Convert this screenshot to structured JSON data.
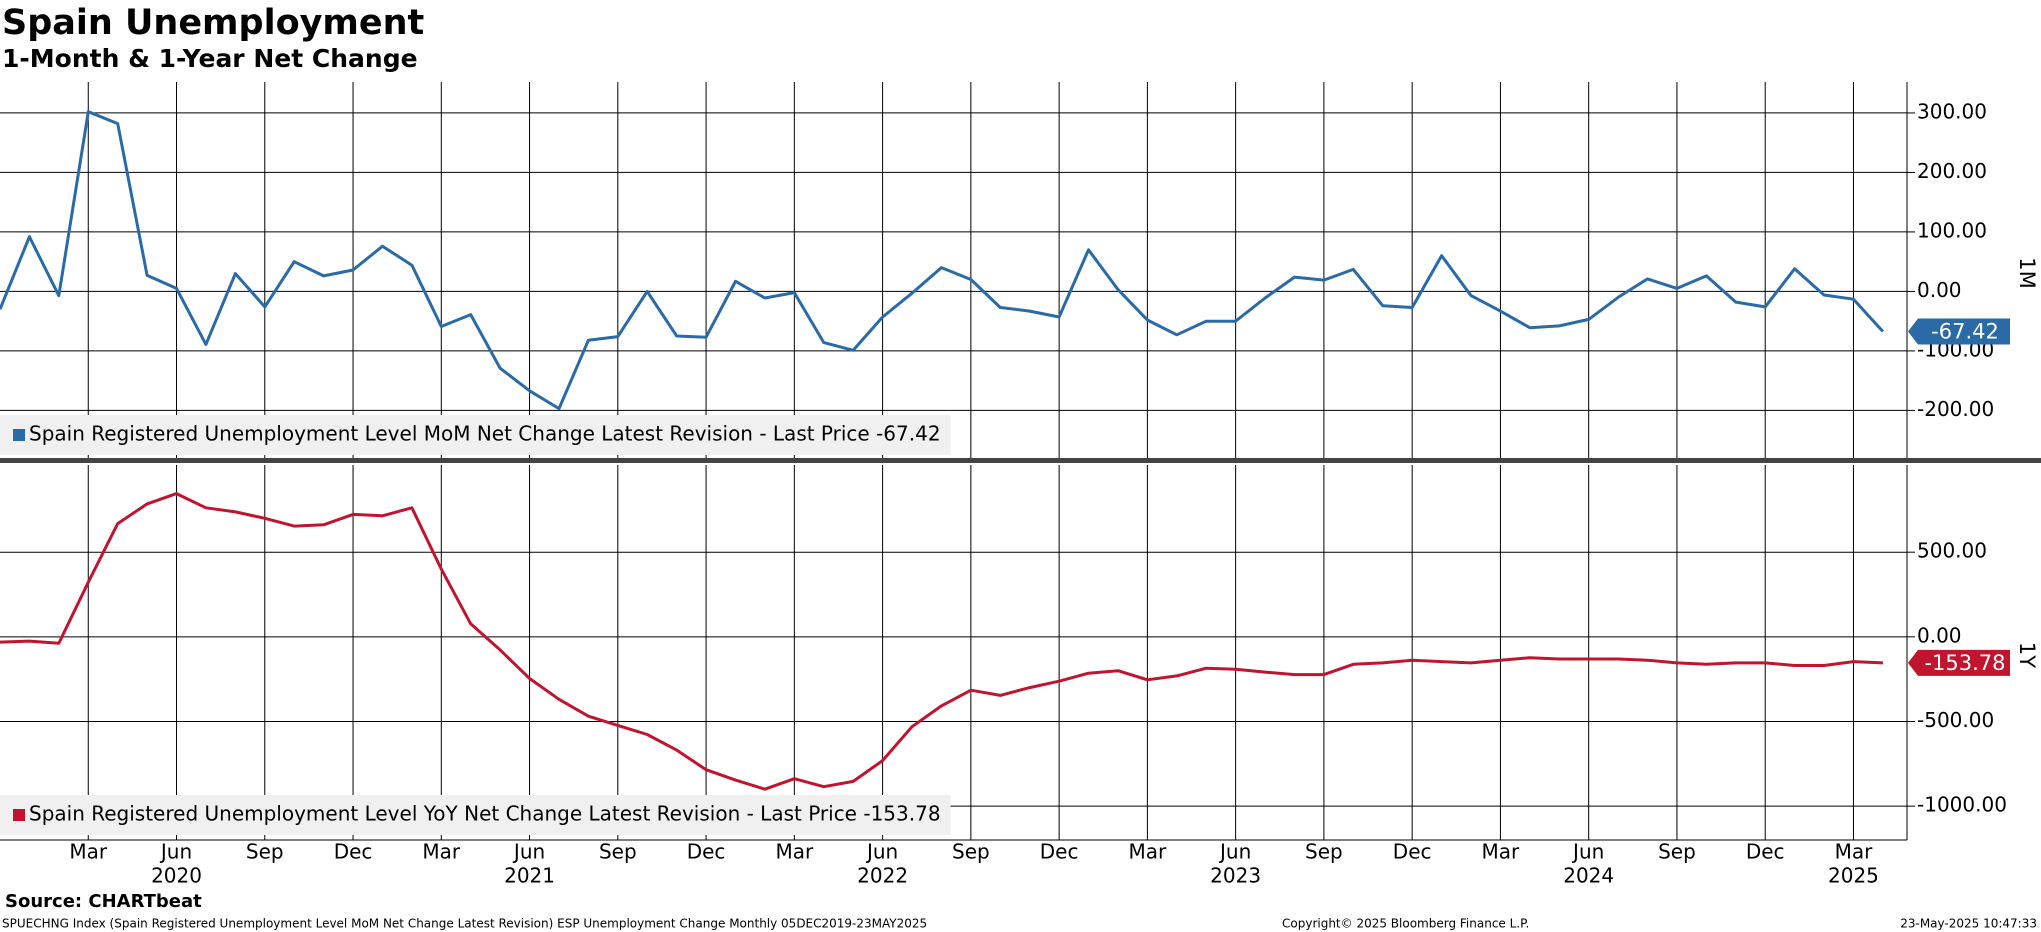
{
  "header": {
    "title": "Spain Unemployment",
    "subtitle": "1-Month & 1-Year Net Change"
  },
  "chart_data": [
    {
      "type": "line",
      "axis_label": "1M",
      "x": [
        "2019-12",
        "2020-01",
        "2020-02",
        "2020-03",
        "2020-04",
        "2020-05",
        "2020-06",
        "2020-07",
        "2020-08",
        "2020-09",
        "2020-10",
        "2020-11",
        "2020-12",
        "2021-01",
        "2021-02",
        "2021-03",
        "2021-04",
        "2021-05",
        "2021-06",
        "2021-07",
        "2021-08",
        "2021-09",
        "2021-10",
        "2021-11",
        "2021-12",
        "2022-01",
        "2022-02",
        "2022-03",
        "2022-04",
        "2022-05",
        "2022-06",
        "2022-07",
        "2022-08",
        "2022-09",
        "2022-10",
        "2022-11",
        "2022-12",
        "2023-01",
        "2023-02",
        "2023-03",
        "2023-04",
        "2023-05",
        "2023-06",
        "2023-07",
        "2023-08",
        "2023-09",
        "2023-10",
        "2023-11",
        "2023-12",
        "2024-01",
        "2024-02",
        "2024-03",
        "2024-04",
        "2024-05",
        "2024-06",
        "2024-07",
        "2024-08",
        "2024-09",
        "2024-10",
        "2024-11",
        "2024-12",
        "2025-01",
        "2025-02",
        "2025-03",
        "2025-04"
      ],
      "series": [
        {
          "name": "Spain Registered Unemployment Level MoM Net Change Latest Revision - Last Price -67.42",
          "color": "#2a6aa6",
          "values": [
            -30,
            92,
            -7,
            302,
            282,
            27,
            5,
            -89,
            30,
            -26,
            50,
            26,
            36,
            76,
            44,
            -59,
            -39,
            -129,
            -167,
            -197,
            -82,
            -76,
            0,
            -75,
            -77,
            17,
            -11,
            -2,
            -86,
            -99,
            -43,
            -3,
            40,
            20,
            -27,
            -33,
            -43,
            70,
            3,
            -48,
            -73,
            -50,
            -50,
            -11,
            24,
            19,
            37,
            -24,
            -27,
            60,
            -7,
            -33,
            -61,
            -58,
            -47,
            -10,
            21,
            5,
            26,
            -18,
            -26,
            38,
            -6,
            -13,
            -67.42
          ]
        }
      ],
      "ylim": [
        -280,
        352
      ],
      "yticks": [
        {
          "value": 300,
          "label": "300.00"
        },
        {
          "value": 200,
          "label": "200.00"
        },
        {
          "value": 100,
          "label": "100.00"
        },
        {
          "value": 0,
          "label": "0.00"
        },
        {
          "value": -100,
          "label": "-100.00"
        },
        {
          "value": -200,
          "label": "-200.00"
        }
      ],
      "grid": true
    },
    {
      "type": "line",
      "axis_label": "1Y",
      "x": [
        "2019-12",
        "2020-01",
        "2020-02",
        "2020-03",
        "2020-04",
        "2020-05",
        "2020-06",
        "2020-07",
        "2020-08",
        "2020-09",
        "2020-10",
        "2020-11",
        "2020-12",
        "2021-01",
        "2021-02",
        "2021-03",
        "2021-04",
        "2021-05",
        "2021-06",
        "2021-07",
        "2021-08",
        "2021-09",
        "2021-10",
        "2021-11",
        "2021-12",
        "2022-01",
        "2022-02",
        "2022-03",
        "2022-04",
        "2022-05",
        "2022-06",
        "2022-07",
        "2022-08",
        "2022-09",
        "2022-10",
        "2022-11",
        "2022-12",
        "2023-01",
        "2023-02",
        "2023-03",
        "2023-04",
        "2023-05",
        "2023-06",
        "2023-07",
        "2023-08",
        "2023-09",
        "2023-10",
        "2023-11",
        "2023-12",
        "2024-01",
        "2024-02",
        "2024-03",
        "2024-04",
        "2024-05",
        "2024-06",
        "2024-07",
        "2024-08",
        "2024-09",
        "2024-10",
        "2024-11",
        "2024-12",
        "2025-01",
        "2025-02",
        "2025-03",
        "2025-04"
      ],
      "series": [
        {
          "name": "Spain Registered Unemployment Level YoY Net Change Latest Revision - Last Price -153.78",
          "color": "#c0142f",
          "values": [
            -31,
            -25,
            -38,
            323,
            669,
            785,
            846,
            762,
            738,
            700,
            654,
            662,
            723,
            715,
            762,
            400,
            77,
            -77,
            -246,
            -369,
            -469,
            -523,
            -577,
            -669,
            -785,
            -846,
            -900,
            -838,
            -885,
            -854,
            -731,
            -531,
            -408,
            -315,
            -346,
            -300,
            -262,
            -215,
            -200,
            -254,
            -231,
            -185,
            -192,
            -208,
            -223,
            -223,
            -162,
            -154,
            -138,
            -146,
            -154,
            -138,
            -123,
            -131,
            -131,
            -131,
            -138,
            -154,
            -162,
            -154,
            -154,
            -169,
            -169,
            -146,
            -153.78
          ]
        }
      ],
      "ylim": [
        -1200,
        1015
      ],
      "yticks": [
        {
          "value": 500,
          "label": "500.00"
        },
        {
          "value": 0,
          "label": "0.00"
        },
        {
          "value": -500,
          "label": "-500.00"
        },
        {
          "value": -1000,
          "label": "-1000.00"
        }
      ],
      "xticks": [
        {
          "value": "2020-03",
          "label": "Mar"
        },
        {
          "value": "2020-06",
          "label": "Jun"
        },
        {
          "value": "2020-09",
          "label": "Sep"
        },
        {
          "value": "2020-12",
          "label": "Dec"
        },
        {
          "value": "2021-03",
          "label": "Mar"
        },
        {
          "value": "2021-06",
          "label": "Jun"
        },
        {
          "value": "2021-09",
          "label": "Sep"
        },
        {
          "value": "2021-12",
          "label": "Dec"
        },
        {
          "value": "2022-03",
          "label": "Mar"
        },
        {
          "value": "2022-06",
          "label": "Jun"
        },
        {
          "value": "2022-09",
          "label": "Sep"
        },
        {
          "value": "2022-12",
          "label": "Dec"
        },
        {
          "value": "2023-03",
          "label": "Mar"
        },
        {
          "value": "2023-06",
          "label": "Jun"
        },
        {
          "value": "2023-09",
          "label": "Sep"
        },
        {
          "value": "2023-12",
          "label": "Dec"
        },
        {
          "value": "2024-03",
          "label": "Mar"
        },
        {
          "value": "2024-06",
          "label": "Jun"
        },
        {
          "value": "2024-09",
          "label": "Sep"
        },
        {
          "value": "2024-12",
          "label": "Dec"
        },
        {
          "value": "2025-03",
          "label": "Mar"
        }
      ],
      "year_labels": [
        {
          "value": "2020-06",
          "label": "2020"
        },
        {
          "value": "2021-06",
          "label": "2021"
        },
        {
          "value": "2022-06",
          "label": "2022"
        },
        {
          "value": "2023-06",
          "label": "2023"
        },
        {
          "value": "2024-06",
          "label": "2024"
        },
        {
          "value": "2025-03",
          "label": "2025"
        }
      ],
      "grid": true
    }
  ],
  "footer": {
    "source": "Source: CHARTbeat",
    "description": "SPUECHNG Index (Spain Registered Unemployment Level MoM Net Change Latest Revision) ESP Unemployment Change  Monthly 05DEC2019-23MAY2025",
    "copyright": "Copyright© 2025 Bloomberg Finance L.P.",
    "timestamp": "23-May-2025 10:47:33"
  }
}
